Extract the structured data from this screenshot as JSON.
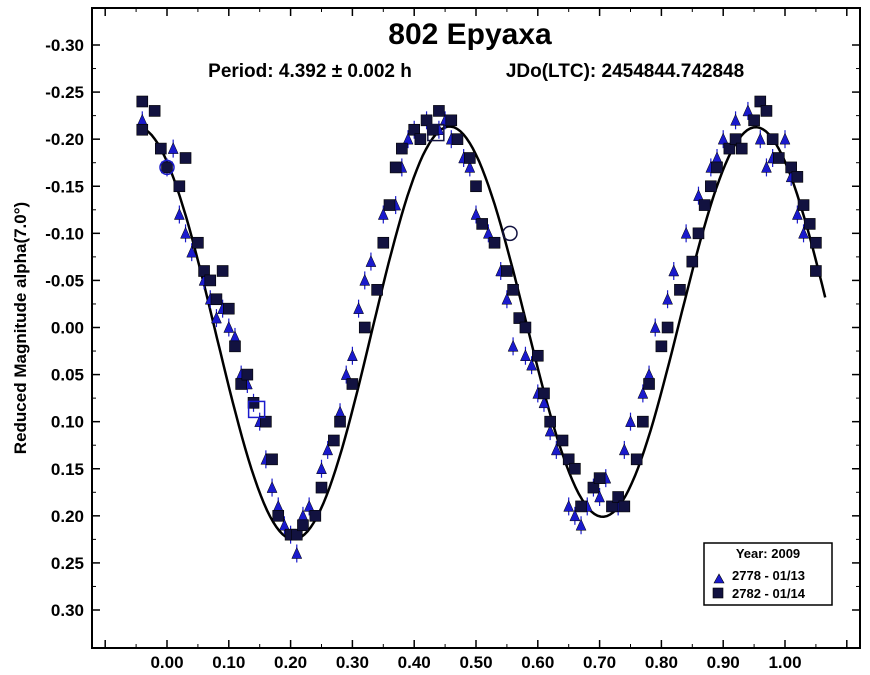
{
  "chart_data": {
    "type": "scatter",
    "title": "802 Epyaxa",
    "subtitle_period": "Period: 4.392 ± 0.002 h",
    "subtitle_epoch": "JDo(LTC): 2454844.742848",
    "ylabel": "Reduced Magnitude alpha(7.0°)",
    "xlabel": "",
    "xlim": [
      -0.12,
      1.12
    ],
    "ylim": [
      0.35,
      -0.35
    ],
    "y_inverted": true,
    "x_ticks": [
      "0.00",
      "0.10",
      "0.20",
      "0.30",
      "0.40",
      "0.50",
      "0.60",
      "0.70",
      "0.80",
      "0.90",
      "1.00"
    ],
    "y_ticks": [
      "-0.30",
      "-0.25",
      "-0.20",
      "-0.15",
      "-0.10",
      "-0.05",
      "0.00",
      "0.05",
      "0.10",
      "0.15",
      "0.20",
      "0.25",
      "0.30"
    ],
    "grid": false,
    "legend": {
      "placement": "bottom-right",
      "title": "Year: 2009",
      "entries": [
        {
          "label": "2778 - 01/13",
          "marker": "triangle",
          "color": "#1a1acc"
        },
        {
          "label": "2782 - 01/14",
          "marker": "square",
          "color": "#121240"
        }
      ]
    },
    "series": [
      {
        "name": "2778 - 01/13",
        "marker": "triangle",
        "color": "#1a1acc",
        "x": [
          -0.04,
          0.0,
          0.01,
          0.02,
          0.03,
          0.04,
          0.06,
          0.07,
          0.08,
          0.09,
          0.1,
          0.11,
          0.12,
          0.13,
          0.14,
          0.15,
          0.16,
          0.17,
          0.18,
          0.19,
          0.2,
          0.21,
          0.22,
          0.23,
          0.25,
          0.26,
          0.28,
          0.29,
          0.3,
          0.31,
          0.32,
          0.33,
          0.35,
          0.37,
          0.38,
          0.39,
          0.4,
          0.42,
          0.44,
          0.45,
          0.46,
          0.48,
          0.49,
          0.5,
          0.52,
          0.54,
          0.55,
          0.56,
          0.58,
          0.59,
          0.6,
          0.61,
          0.62,
          0.63,
          0.65,
          0.66,
          0.67,
          0.68,
          0.69,
          0.7,
          0.71,
          0.73,
          0.74,
          0.75,
          0.77,
          0.78,
          0.79,
          0.81,
          0.82,
          0.84,
          0.86,
          0.88,
          0.89,
          0.9,
          0.92,
          0.94,
          0.96,
          0.97,
          0.98,
          1.0,
          1.01,
          1.02,
          1.03
        ],
        "y": [
          -0.22,
          -0.17,
          -0.19,
          -0.12,
          -0.1,
          -0.08,
          -0.05,
          -0.03,
          -0.01,
          -0.02,
          0.0,
          0.01,
          0.05,
          0.06,
          0.08,
          0.1,
          0.14,
          0.17,
          0.19,
          0.21,
          0.22,
          0.24,
          0.2,
          0.19,
          0.15,
          0.13,
          0.09,
          0.05,
          0.03,
          -0.02,
          -0.05,
          -0.07,
          -0.12,
          -0.13,
          -0.17,
          -0.2,
          -0.21,
          -0.22,
          -0.21,
          -0.22,
          -0.2,
          -0.18,
          -0.17,
          -0.12,
          -0.1,
          -0.06,
          -0.03,
          0.02,
          0.03,
          0.04,
          0.07,
          0.08,
          0.11,
          0.13,
          0.19,
          0.2,
          0.21,
          0.19,
          0.17,
          0.18,
          0.16,
          0.19,
          0.13,
          0.1,
          0.07,
          0.05,
          0.0,
          -0.03,
          -0.06,
          -0.1,
          -0.14,
          -0.17,
          -0.18,
          -0.2,
          -0.22,
          -0.23,
          -0.2,
          -0.17,
          -0.18,
          -0.2,
          -0.16,
          -0.12,
          -0.1
        ]
      },
      {
        "name": "2782 - 01/14",
        "marker": "square",
        "color": "#121240",
        "x": [
          -0.04,
          -0.04,
          -0.02,
          -0.01,
          0.0,
          0.02,
          0.03,
          0.05,
          0.06,
          0.07,
          0.08,
          0.09,
          0.1,
          0.11,
          0.12,
          0.13,
          0.14,
          0.16,
          0.17,
          0.18,
          0.2,
          0.21,
          0.22,
          0.24,
          0.25,
          0.27,
          0.28,
          0.3,
          0.32,
          0.34,
          0.35,
          0.36,
          0.37,
          0.38,
          0.4,
          0.41,
          0.42,
          0.43,
          0.44,
          0.46,
          0.47,
          0.49,
          0.5,
          0.51,
          0.53,
          0.55,
          0.56,
          0.57,
          0.58,
          0.6,
          0.61,
          0.62,
          0.64,
          0.65,
          0.66,
          0.67,
          0.69,
          0.7,
          0.72,
          0.73,
          0.74,
          0.76,
          0.77,
          0.78,
          0.8,
          0.81,
          0.83,
          0.85,
          0.86,
          0.87,
          0.88,
          0.89,
          0.91,
          0.92,
          0.93,
          0.95,
          0.96,
          0.97,
          0.98,
          0.99,
          1.01,
          1.02,
          1.03,
          1.04,
          1.05,
          1.05
        ],
        "y": [
          -0.24,
          -0.21,
          -0.23,
          -0.19,
          -0.17,
          -0.15,
          -0.18,
          -0.09,
          -0.06,
          -0.05,
          -0.03,
          -0.06,
          -0.02,
          0.02,
          0.06,
          0.05,
          0.08,
          0.1,
          0.14,
          0.2,
          0.22,
          0.22,
          0.21,
          0.2,
          0.17,
          0.12,
          0.1,
          0.06,
          0.0,
          -0.04,
          -0.09,
          -0.13,
          -0.17,
          -0.19,
          -0.21,
          -0.2,
          -0.22,
          -0.21,
          -0.23,
          -0.22,
          -0.2,
          -0.18,
          -0.15,
          -0.11,
          -0.09,
          -0.06,
          -0.04,
          -0.01,
          0.0,
          0.03,
          0.07,
          0.1,
          0.12,
          0.14,
          0.15,
          0.19,
          0.17,
          0.16,
          0.19,
          0.18,
          0.19,
          0.14,
          0.1,
          0.06,
          0.02,
          0.0,
          -0.04,
          -0.07,
          -0.1,
          -0.13,
          -0.15,
          -0.17,
          -0.19,
          -0.2,
          -0.19,
          -0.22,
          -0.24,
          -0.23,
          -0.2,
          -0.18,
          -0.17,
          -0.16,
          -0.13,
          -0.11,
          -0.09,
          -0.06
        ]
      }
    ],
    "fit_curve": {
      "amplitude": 0.213,
      "harmonics": 2,
      "description": "fourier fit"
    }
  }
}
